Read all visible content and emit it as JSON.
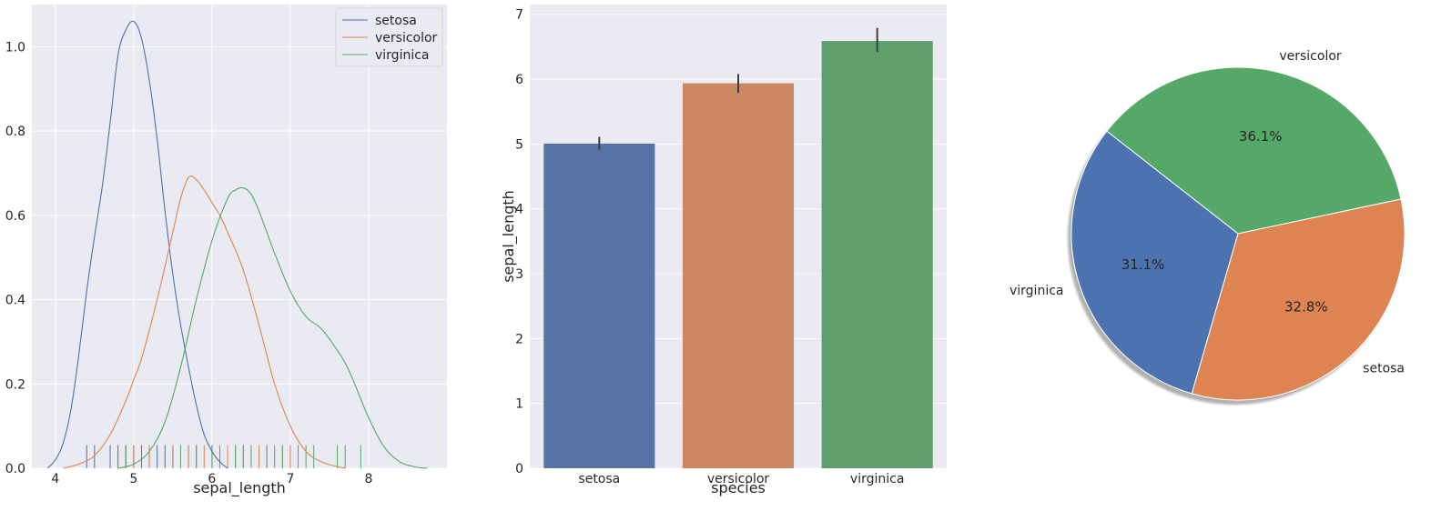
{
  "chart_data": [
    {
      "type": "line",
      "subtype": "kde-with-rug",
      "xlabel": "sepal_length",
      "ylabel": "",
      "xlim": [
        3.7,
        9.0
      ],
      "ylim": [
        0,
        1.1
      ],
      "xticks": [
        4,
        5,
        6,
        7,
        8
      ],
      "yticks": [
        0.0,
        0.2,
        0.4,
        0.6,
        0.8,
        1.0
      ],
      "grid": true,
      "legend_position": "top-right",
      "series": [
        {
          "name": "setosa",
          "color": "#4c72b0",
          "x": [
            3.9,
            4.0,
            4.1,
            4.2,
            4.3,
            4.4,
            4.5,
            4.6,
            4.7,
            4.8,
            4.9,
            5.0,
            5.1,
            5.2,
            5.3,
            5.4,
            5.5,
            5.6,
            5.7,
            5.8,
            5.9,
            6.0,
            6.1,
            6.2
          ],
          "y": [
            0.0,
            0.02,
            0.06,
            0.14,
            0.27,
            0.42,
            0.55,
            0.67,
            0.82,
            0.98,
            1.04,
            1.06,
            1.02,
            0.92,
            0.78,
            0.61,
            0.46,
            0.34,
            0.24,
            0.15,
            0.08,
            0.04,
            0.015,
            0.0
          ],
          "rug": [
            4.4,
            4.5,
            4.7,
            4.8,
            4.9,
            5.0,
            5.1,
            5.2,
            5.3,
            5.4,
            5.5,
            5.7,
            5.8
          ]
        },
        {
          "name": "versicolor",
          "color": "#dd8452",
          "x": [
            4.1,
            4.3,
            4.5,
            4.7,
            4.9,
            5.0,
            5.1,
            5.3,
            5.5,
            5.6,
            5.7,
            5.8,
            5.9,
            6.0,
            6.1,
            6.2,
            6.4,
            6.6,
            6.8,
            7.0,
            7.2,
            7.4,
            7.6,
            7.7
          ],
          "y": [
            0.0,
            0.01,
            0.03,
            0.08,
            0.16,
            0.21,
            0.26,
            0.4,
            0.56,
            0.64,
            0.69,
            0.685,
            0.66,
            0.63,
            0.6,
            0.56,
            0.47,
            0.34,
            0.2,
            0.1,
            0.04,
            0.015,
            0.004,
            0.0
          ],
          "rug": [
            4.9,
            5.0,
            5.2,
            5.5,
            5.6,
            5.7,
            5.8,
            5.9,
            6.0,
            6.1,
            6.2,
            6.3,
            6.4,
            6.6,
            6.7,
            6.9,
            7.0
          ]
        },
        {
          "name": "virginica",
          "color": "#55a868",
          "x": [
            4.8,
            5.0,
            5.2,
            5.4,
            5.6,
            5.8,
            6.0,
            6.2,
            6.3,
            6.4,
            6.5,
            6.6,
            6.8,
            7.0,
            7.2,
            7.4,
            7.6,
            7.7,
            7.8,
            8.0,
            8.2,
            8.4,
            8.6,
            8.75
          ],
          "y": [
            0.0,
            0.01,
            0.04,
            0.11,
            0.24,
            0.4,
            0.54,
            0.64,
            0.66,
            0.665,
            0.65,
            0.61,
            0.51,
            0.42,
            0.36,
            0.33,
            0.28,
            0.25,
            0.21,
            0.12,
            0.05,
            0.015,
            0.003,
            0.0
          ],
          "rug": [
            4.9,
            5.6,
            5.8,
            6.0,
            6.1,
            6.3,
            6.4,
            6.5,
            6.7,
            6.8,
            6.9,
            7.1,
            7.2,
            7.3,
            7.6,
            7.7,
            7.9
          ]
        }
      ]
    },
    {
      "type": "bar",
      "categories": [
        "setosa",
        "versicolor",
        "virginica"
      ],
      "values": [
        5.006,
        5.936,
        6.588
      ],
      "error_low": [
        4.91,
        5.79,
        6.42
      ],
      "error_high": [
        5.11,
        6.08,
        6.79
      ],
      "colors": [
        "#5874a4",
        "#cb8761",
        "#5e9f6d"
      ],
      "xlabel": "species",
      "ylabel": "sepal_length",
      "ylim": [
        0,
        7.15
      ],
      "yticks": [
        0,
        1,
        2,
        3,
        4,
        5,
        6,
        7
      ],
      "grid": true
    },
    {
      "type": "pie",
      "shadow": true,
      "slices": [
        {
          "label": "versicolor",
          "value": 36.1,
          "pct_label": "36.1%",
          "color": "#55a868"
        },
        {
          "label": "virginica",
          "value": 31.1,
          "pct_label": "31.1%",
          "color": "#4c72b0"
        },
        {
          "label": "setosa",
          "value": 32.8,
          "pct_label": "32.8%",
          "color": "#dd8452"
        }
      ]
    }
  ]
}
